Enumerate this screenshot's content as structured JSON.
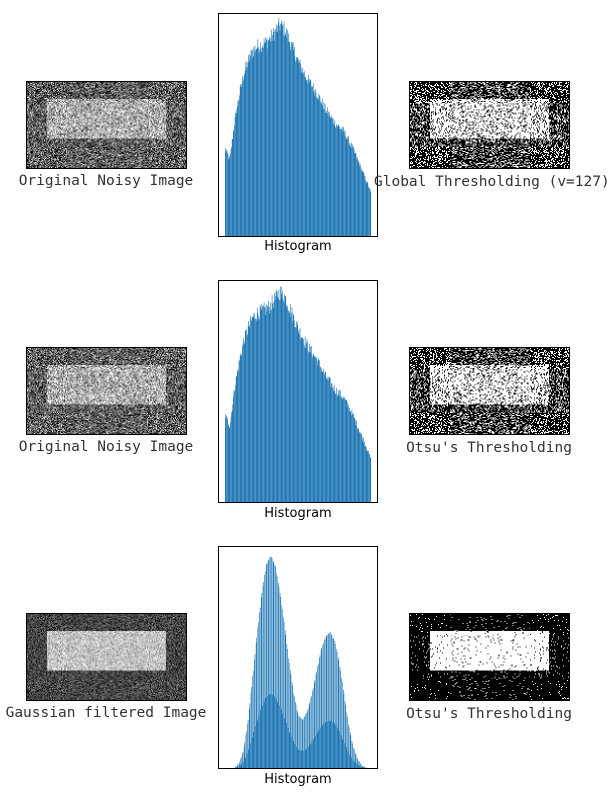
{
  "figure": {
    "rows": [
      {
        "left_caption": "Original Noisy Image",
        "hist_caption": "Histogram",
        "right_caption": "Global Thresholding (v=127)"
      },
      {
        "left_caption": "Original Noisy Image",
        "hist_caption": "Histogram",
        "right_caption": "Otsu's Thresholding"
      },
      {
        "left_caption": "Gaussian filtered Image",
        "hist_caption": "Histogram",
        "right_caption": "Otsu's Thresholding"
      }
    ]
  },
  "colors": {
    "bar": "#1f77b4",
    "axes": "#000000"
  },
  "chart_data": [
    {
      "type": "bar",
      "title": "",
      "xlabel": "Histogram",
      "ylabel": "",
      "xlim": [
        0,
        256
      ],
      "x": [
        0,
        8,
        16,
        24,
        32,
        40,
        48,
        56,
        64,
        72,
        80,
        88,
        96,
        104,
        112,
        120,
        128,
        136,
        144,
        152,
        160,
        168,
        176,
        184,
        192,
        200,
        208,
        216,
        224,
        232,
        240,
        248,
        255
      ],
      "values": [
        40,
        35,
        52,
        64,
        74,
        80,
        85,
        87,
        88,
        89,
        91,
        94,
        97,
        95,
        90,
        85,
        80,
        76,
        72,
        69,
        66,
        62,
        58,
        55,
        52,
        50,
        48,
        44,
        40,
        35,
        30,
        25,
        20
      ]
    },
    {
      "type": "bar",
      "title": "",
      "xlabel": "Histogram",
      "ylabel": "",
      "xlim": [
        0,
        256
      ],
      "x": [
        0,
        8,
        16,
        24,
        32,
        40,
        48,
        56,
        64,
        72,
        80,
        88,
        96,
        104,
        112,
        120,
        128,
        136,
        144,
        152,
        160,
        168,
        176,
        184,
        192,
        200,
        208,
        216,
        224,
        232,
        240,
        248,
        255
      ],
      "values": [
        40,
        35,
        52,
        64,
        74,
        80,
        85,
        87,
        88,
        89,
        91,
        94,
        97,
        95,
        90,
        85,
        80,
        76,
        72,
        69,
        66,
        62,
        58,
        55,
        52,
        50,
        48,
        44,
        40,
        35,
        30,
        25,
        20
      ]
    },
    {
      "type": "bar",
      "title": "",
      "xlabel": "Histogram",
      "ylabel": "",
      "xlim": [
        0,
        256
      ],
      "x": [
        0,
        8,
        16,
        24,
        32,
        40,
        48,
        56,
        64,
        72,
        80,
        88,
        96,
        104,
        112,
        120,
        128,
        136,
        144,
        152,
        160,
        168,
        176,
        184,
        192,
        200,
        208,
        216,
        224,
        232,
        240,
        248,
        255
      ],
      "values": [
        0,
        0,
        0,
        2,
        8,
        22,
        42,
        62,
        80,
        93,
        97,
        92,
        80,
        65,
        48,
        34,
        24,
        22,
        26,
        34,
        44,
        54,
        60,
        62,
        58,
        48,
        34,
        20,
        10,
        4,
        1,
        0,
        0
      ]
    }
  ]
}
